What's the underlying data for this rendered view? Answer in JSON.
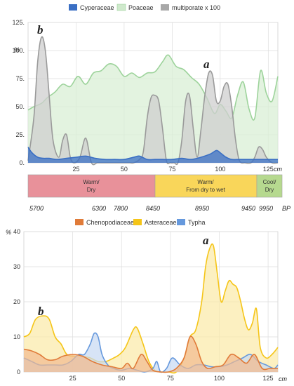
{
  "chart_data": [
    {
      "type": "area",
      "ylabel": "%",
      "xlabel_unit": "cm",
      "ylim": [
        0,
        125
      ],
      "xlim": [
        0,
        130
      ],
      "yticks": [
        "125.",
        "100.",
        "75.",
        "50.",
        "25.",
        "0."
      ],
      "xticks": [
        "25",
        "50",
        "75",
        "100",
        "125"
      ],
      "annotations": [
        "b",
        "a"
      ],
      "legend_placement": "top",
      "series": [
        {
          "name": "Cyperaceae",
          "color": "#3a6fc4",
          "fill": "#3a6fc4",
          "x": [
            0,
            2,
            5,
            8,
            11,
            15,
            20,
            25,
            30,
            35,
            40,
            45,
            50,
            55,
            58,
            62,
            66,
            70,
            75,
            80,
            85,
            90,
            95,
            98,
            100,
            103,
            106,
            110,
            115,
            120,
            125,
            130
          ],
          "y": [
            14,
            9,
            5,
            4,
            4,
            3,
            4,
            5,
            6,
            4,
            3,
            3,
            3,
            5,
            6,
            3,
            3,
            3,
            3,
            4,
            3,
            5,
            8,
            11,
            9,
            5,
            3,
            3,
            3,
            3,
            3,
            3
          ]
        },
        {
          "name": "Poaceae",
          "color": "#9dd39b",
          "fill": "#d9efd6",
          "x": [
            0,
            3,
            7,
            10,
            14,
            18,
            22,
            26,
            30,
            34,
            38,
            42,
            46,
            50,
            54,
            58,
            62,
            66,
            70,
            73,
            77,
            81,
            85,
            89,
            93,
            97,
            100,
            103,
            106,
            109,
            112,
            115,
            118,
            121,
            124,
            127,
            130
          ],
          "y": [
            47,
            50,
            53,
            58,
            63,
            70,
            68,
            77,
            70,
            80,
            82,
            88,
            86,
            77,
            80,
            76,
            80,
            81,
            90,
            96,
            86,
            83,
            76,
            70,
            58,
            44,
            52,
            46,
            40,
            60,
            72,
            48,
            40,
            82,
            62,
            55,
            77
          ]
        },
        {
          "name": "multiporate x 100",
          "color": "#9a9a9a",
          "fill": "#cfcfcf",
          "x": [
            0,
            3,
            5,
            7,
            9,
            11,
            13,
            16,
            18,
            20,
            22,
            24,
            27,
            30,
            33,
            36,
            38,
            41,
            44,
            47,
            50,
            53,
            55,
            58,
            60,
            62,
            64,
            66,
            68,
            70,
            72,
            74,
            76,
            78,
            80,
            82,
            84,
            86,
            88,
            90,
            92,
            94,
            96,
            98,
            100,
            102,
            104,
            106,
            108,
            110,
            113,
            116,
            118,
            120,
            122,
            124,
            127,
            130
          ],
          "y": [
            2,
            40,
            90,
            112,
            100,
            60,
            20,
            5,
            20,
            25,
            5,
            0,
            5,
            22,
            0,
            0,
            0,
            0,
            0,
            0,
            0,
            0,
            0,
            3,
            10,
            40,
            58,
            60,
            55,
            30,
            2,
            0,
            0,
            0,
            20,
            55,
            60,
            30,
            5,
            30,
            60,
            80,
            78,
            55,
            55,
            68,
            70,
            50,
            20,
            2,
            0,
            0,
            5,
            14,
            12,
            5,
            0,
            0
          ]
        }
      ],
      "climate_zones": [
        {
          "label_line1": "Warm/",
          "label_line2": "Dry",
          "color": "#e8919a"
        },
        {
          "label_line1": "Warm/",
          "label_line2": "From dry to wet",
          "color": "#f9d65a"
        },
        {
          "label_line1": "Cool/",
          "label_line2": "Dry",
          "color": "#b6d98f"
        }
      ],
      "bp_axis": {
        "labels": [
          "5700",
          "6300",
          "7800",
          "8450",
          "8950",
          "9450",
          "9950"
        ],
        "unit": "BP"
      }
    },
    {
      "type": "area",
      "ylabel": "%",
      "xlabel_unit": "cm",
      "ylim": [
        0,
        40
      ],
      "xlim": [
        0,
        130
      ],
      "yticks": [
        "40",
        "30",
        "20",
        "10",
        "0"
      ],
      "xticks": [
        "25",
        "50",
        "75",
        "100",
        "125"
      ],
      "annotations": [
        "b",
        "a"
      ],
      "legend_placement": "top",
      "series": [
        {
          "name": "Chenopodiaceae",
          "color": "#e07b39",
          "fill": "#f2b98f",
          "x": [
            0,
            4,
            8,
            12,
            16,
            20,
            25,
            30,
            35,
            40,
            45,
            50,
            53,
            56,
            60,
            63,
            66,
            70,
            74,
            78,
            82,
            85,
            88,
            91,
            94,
            98,
            102,
            106,
            110,
            114,
            118,
            122,
            126,
            130
          ],
          "y": [
            6.5,
            6,
            5,
            3.5,
            3.5,
            4.5,
            5,
            4.5,
            3,
            2,
            1.5,
            1,
            2.5,
            1,
            5,
            3,
            0.5,
            0,
            0,
            1,
            4,
            10,
            8,
            3,
            1,
            1.5,
            2,
            5,
            4,
            2.5,
            5,
            1,
            1,
            1
          ]
        },
        {
          "name": "Asteraceae",
          "color": "#f5c518",
          "fill": "#fbe9a6",
          "x": [
            0,
            3,
            6,
            10,
            13,
            16,
            19,
            22,
            26,
            30,
            34,
            38,
            42,
            46,
            49,
            52,
            56,
            58,
            61,
            64,
            67,
            70,
            74,
            78,
            82,
            85,
            88,
            91,
            93,
            95,
            97,
            99,
            101,
            103,
            105,
            107,
            109,
            111,
            113,
            115,
            117,
            119,
            121,
            124,
            127,
            130
          ],
          "y": [
            10,
            11,
            15,
            16,
            15,
            10,
            8,
            5,
            4.5,
            4.5,
            4,
            3,
            3,
            4,
            5,
            7,
            12,
            12.5,
            8,
            3,
            0.5,
            0,
            0,
            0,
            4,
            10,
            12,
            20,
            30,
            35,
            36,
            28,
            20,
            23,
            26,
            25,
            24,
            20,
            15,
            12,
            14,
            18,
            7,
            4,
            5,
            7
          ]
        },
        {
          "name": "Typha",
          "color": "#6699dd",
          "fill": "#c6d8f2",
          "x": [
            0,
            4,
            8,
            12,
            16,
            20,
            24,
            28,
            31,
            34,
            36,
            38,
            40,
            43,
            46,
            50,
            54,
            58,
            62,
            66,
            68,
            70,
            73,
            76,
            80,
            84,
            88,
            92,
            96,
            100,
            104,
            108,
            112,
            116,
            120,
            124,
            128,
            130
          ],
          "y": [
            4,
            3,
            2,
            2,
            2,
            2,
            3,
            5,
            5,
            8,
            11,
            10,
            5,
            2,
            1,
            0.5,
            1,
            0.5,
            0,
            1,
            3,
            0,
            1,
            4,
            2,
            1,
            2,
            2,
            1.5,
            1.5,
            2,
            3,
            4,
            5,
            3,
            2,
            1,
            2
          ]
        }
      ]
    }
  ]
}
